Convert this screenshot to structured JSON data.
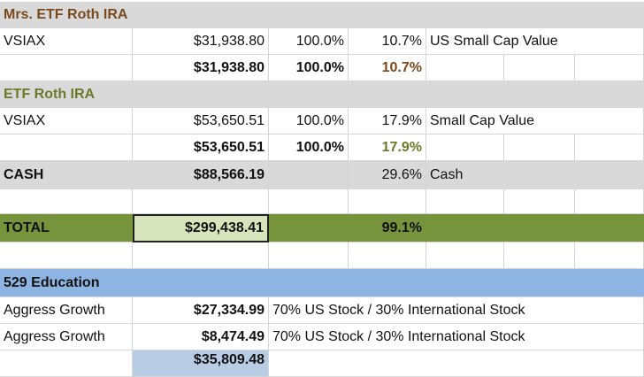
{
  "rows": {
    "mrs_etf_roth_header": {
      "title": "Mrs. ETF Roth IRA"
    },
    "mrs_vsiax": {
      "name": "VSIAX",
      "value": "$31,938.80",
      "alloc": "100.0%",
      "pct": "10.7%",
      "category": "US Small Cap Value"
    },
    "mrs_subtotal": {
      "value": "$31,938.80",
      "alloc": "100.0%",
      "pct": "10.7%"
    },
    "etf_roth_header": {
      "title": "ETF Roth IRA"
    },
    "etf_vsiax": {
      "name": "VSIAX",
      "value": "$53,650.51",
      "alloc": "100.0%",
      "pct": "17.9%",
      "category": "Small Cap Value"
    },
    "etf_subtotal": {
      "value": "$53,650.51",
      "alloc": "100.0%",
      "pct": "17.9%"
    },
    "cash": {
      "name": "CASH",
      "value": "$88,566.19",
      "pct": "29.6%",
      "category": "Cash"
    },
    "total": {
      "name": "TOTAL",
      "value": "$299,438.41",
      "pct": "99.1%"
    },
    "education_header": {
      "title": "529 Education"
    },
    "edu_row1": {
      "name": "Aggress Growth",
      "value": "$27,334.99",
      "category": "70% US Stock / 30% International Stock"
    },
    "edu_row2": {
      "name": "Aggress Growth",
      "value": "$8,474.49",
      "category": "70% US Stock / 30% International Stock"
    },
    "edu_subtotal": {
      "value": "$35,809.48"
    }
  },
  "colors": {
    "section_header_bg": "#d9d9d9",
    "total_bg": "#77933c",
    "selected_cell_bg": "#d8e4bc",
    "education_header_bg": "#8db4e2",
    "subtotal_blue_bg": "#b8cce4",
    "brown_text": "#7a4a1f",
    "olive_text": "#6b7a2a"
  }
}
